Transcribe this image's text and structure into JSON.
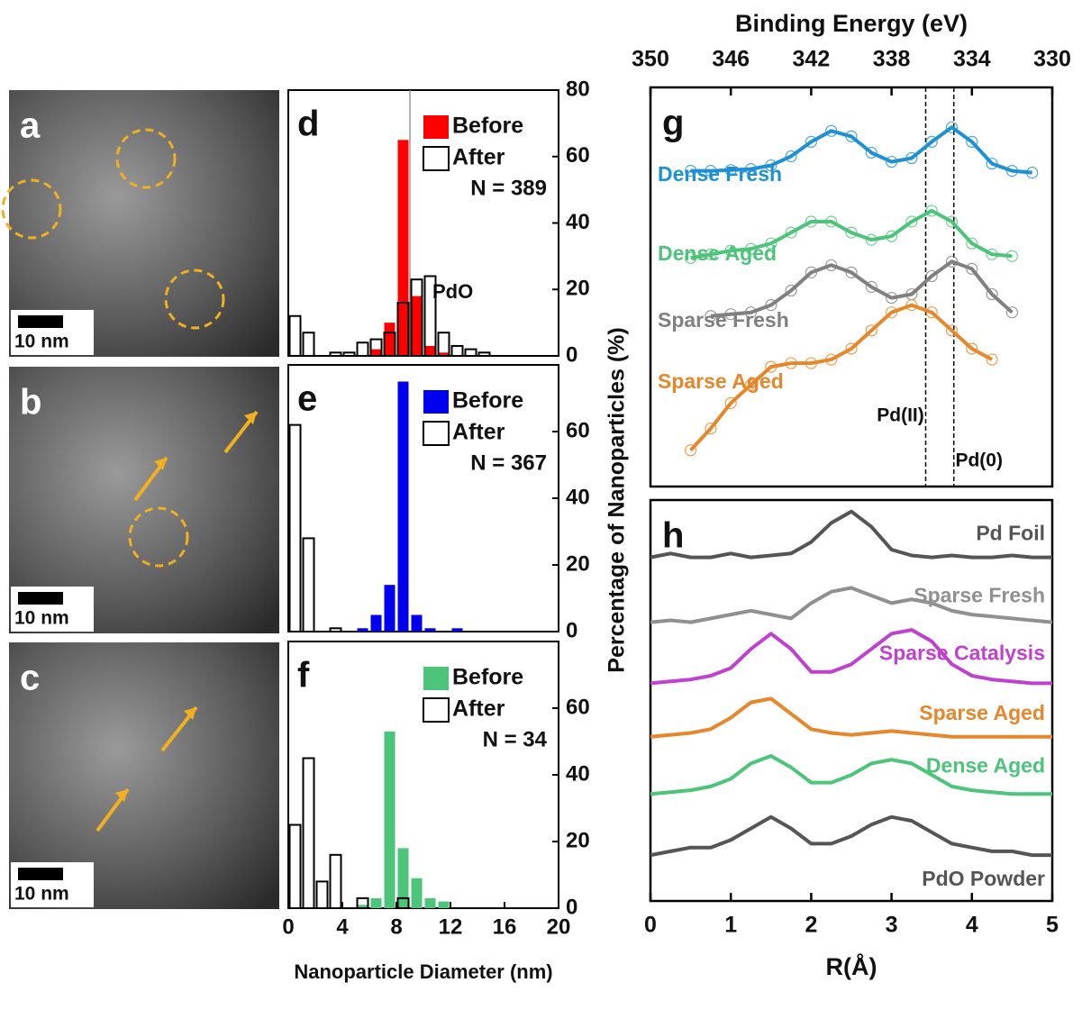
{
  "images": [
    {
      "label": "a",
      "scale_bar": "10 nm"
    },
    {
      "label": "b",
      "scale_bar": "10 nm"
    },
    {
      "label": "c",
      "scale_bar": "10 nm"
    }
  ],
  "histogram_axes": {
    "xlabel": "Nanoparticle Diameter (nm)",
    "ylabel": "Percentage of Nanoparticles (%)"
  },
  "chart_data": [
    {
      "type": "histogram",
      "panel": "d",
      "bins": [
        0,
        1,
        2,
        3,
        4,
        5,
        6,
        7,
        8,
        9,
        10,
        11,
        12,
        13,
        14,
        15,
        16,
        17,
        18,
        19,
        20
      ],
      "series": [
        {
          "name": "Before",
          "color": "#ff0000",
          "values": [
            0,
            0,
            0,
            0,
            0,
            0,
            2,
            10,
            65,
            18,
            3,
            1,
            0,
            0,
            0,
            0,
            0,
            0,
            0,
            0
          ]
        },
        {
          "name": "After",
          "color": "none",
          "edgecolor": "#000000",
          "values": [
            12,
            7,
            0,
            1,
            1,
            4,
            5,
            7,
            16,
            23,
            24,
            7,
            3,
            2,
            1,
            0,
            0,
            0,
            0,
            0
          ]
        }
      ],
      "note": "N = 389",
      "annotation": {
        "text": "PdO",
        "x": 9
      },
      "xlim": [
        0,
        20
      ],
      "ylim": [
        0,
        80
      ],
      "yticks": [
        0,
        20,
        40,
        60,
        80
      ]
    },
    {
      "type": "histogram",
      "panel": "e",
      "bins": [
        0,
        1,
        2,
        3,
        4,
        5,
        6,
        7,
        8,
        9,
        10,
        11,
        12,
        13,
        14,
        15,
        16,
        17,
        18,
        19,
        20
      ],
      "series": [
        {
          "name": "Before",
          "color": "#0000ee",
          "values": [
            0,
            0,
            0,
            0,
            0,
            1,
            5,
            14,
            75,
            5,
            1,
            0,
            1,
            0,
            0,
            0,
            0,
            0,
            0,
            0
          ]
        },
        {
          "name": "After",
          "color": "none",
          "edgecolor": "#000000",
          "values": [
            62,
            28,
            0,
            1,
            0,
            0,
            0,
            0,
            0,
            0,
            0,
            0,
            0,
            0,
            0,
            0,
            0,
            0,
            0,
            0
          ]
        }
      ],
      "note": "N = 367",
      "xlim": [
        0,
        20
      ],
      "ylim": [
        0,
        80
      ],
      "yticks": [
        0,
        20,
        40,
        60
      ]
    },
    {
      "type": "histogram",
      "panel": "f",
      "bins": [
        0,
        1,
        2,
        3,
        4,
        5,
        6,
        7,
        8,
        9,
        10,
        11,
        12,
        13,
        14,
        15,
        16,
        17,
        18,
        19,
        20
      ],
      "series": [
        {
          "name": "Before",
          "color": "#4cc47a",
          "values": [
            0,
            0,
            0,
            0,
            0,
            1,
            3,
            53,
            18,
            9,
            3,
            2,
            0,
            0,
            0,
            0,
            0,
            0,
            0,
            0
          ]
        },
        {
          "name": "After",
          "color": "none",
          "edgecolor": "#000000",
          "values": [
            25,
            45,
            8,
            16,
            0,
            3,
            0,
            0,
            3,
            0,
            0,
            0,
            0,
            0,
            0,
            0,
            0,
            0,
            0,
            0
          ]
        }
      ],
      "note": "N = 34",
      "xlim": [
        0,
        20
      ],
      "ylim": [
        0,
        80
      ],
      "yticks": [
        0,
        20,
        40,
        60
      ],
      "xticks": [
        0,
        4,
        8,
        12,
        16,
        20
      ]
    },
    {
      "type": "line",
      "panel": "g",
      "xlabel": "Binding Energy (eV)",
      "x": [
        348,
        347,
        346,
        345,
        344,
        343,
        342,
        341,
        340,
        339,
        338,
        337,
        336,
        335,
        334,
        333,
        332,
        331
      ],
      "series": [
        {
          "name": "Dense Fresh",
          "color": "#1e90d6",
          "values": [
            8.7,
            8.7,
            8.72,
            8.75,
            8.85,
            9.1,
            9.5,
            9.8,
            9.65,
            9.2,
            8.95,
            9.05,
            9.5,
            9.9,
            9.5,
            8.9,
            8.7,
            8.65
          ]
        },
        {
          "name": "Dense Aged",
          "color": "#4cc47a",
          "values": [
            6.3,
            6.4,
            6.5,
            6.55,
            6.7,
            7.0,
            7.3,
            7.3,
            7.0,
            6.8,
            6.9,
            7.3,
            7.6,
            7.3,
            6.7,
            6.4,
            6.35,
            null
          ]
        },
        {
          "name": "Sparse Fresh",
          "color": "#808080",
          "values": [
            null,
            4.7,
            4.75,
            4.8,
            5.0,
            5.4,
            5.9,
            6.1,
            5.9,
            5.5,
            5.2,
            5.3,
            5.8,
            6.2,
            6.0,
            5.3,
            4.8,
            null
          ]
        },
        {
          "name": "Sparse Aged",
          "color": "#e8862a",
          "values": [
            1.0,
            1.6,
            2.3,
            2.8,
            3.3,
            3.4,
            3.4,
            3.5,
            3.8,
            4.3,
            4.8,
            5.0,
            4.8,
            4.3,
            3.8,
            3.5,
            null,
            null
          ]
        }
      ],
      "vlines": [
        {
          "x": 336.3,
          "label": "Pd(II)"
        },
        {
          "x": 334.9,
          "label": "Pd(0)"
        }
      ],
      "xlim": [
        350,
        330
      ],
      "ylim": [
        0,
        11
      ],
      "xticks": [
        350,
        346,
        342,
        338,
        334,
        330
      ]
    },
    {
      "type": "line",
      "panel": "h",
      "xlabel": "R(Å)",
      "x": [
        0,
        0.25,
        0.5,
        0.75,
        1,
        1.25,
        1.5,
        1.75,
        2,
        2.25,
        2.5,
        2.75,
        3,
        3.25,
        3.5,
        3.75,
        4,
        4.25,
        4.5,
        4.75,
        5
      ],
      "series": [
        {
          "name": "Pd Foil",
          "color": "#555555",
          "values": [
            10,
            10.1,
            10,
            10,
            10.1,
            10,
            10.05,
            10.1,
            10.4,
            10.9,
            11.2,
            10.8,
            10.2,
            10.05,
            10,
            10.05,
            10,
            10,
            10.05,
            10,
            10
          ]
        },
        {
          "name": "Sparse Fresh",
          "color": "#909090",
          "values": [
            8.3,
            8.35,
            8.3,
            8.4,
            8.5,
            8.6,
            8.5,
            8.4,
            8.8,
            9.1,
            9.2,
            9.0,
            8.8,
            8.9,
            8.8,
            8.6,
            8.5,
            8.45,
            8.4,
            8.35,
            8.3
          ]
        },
        {
          "name": "Sparse Catalysis",
          "color": "#c040d0",
          "values": [
            6.7,
            6.75,
            6.8,
            6.9,
            7.1,
            7.6,
            8.0,
            7.6,
            7.0,
            7.0,
            7.2,
            7.6,
            8.0,
            8.1,
            7.8,
            7.2,
            6.9,
            6.8,
            6.75,
            6.7,
            6.7
          ]
        },
        {
          "name": "Sparse Aged",
          "color": "#e8862a",
          "values": [
            5.3,
            5.35,
            5.4,
            5.5,
            5.8,
            6.2,
            6.3,
            5.9,
            5.5,
            5.4,
            5.35,
            5.4,
            5.45,
            5.4,
            5.35,
            5.3,
            5.3,
            5.3,
            5.3,
            5.3,
            5.3
          ]
        },
        {
          "name": "Dense Aged",
          "color": "#4cc47a",
          "values": [
            3.8,
            3.85,
            3.9,
            4.0,
            4.2,
            4.6,
            4.8,
            4.5,
            4.1,
            4.1,
            4.3,
            4.6,
            4.7,
            4.6,
            4.3,
            4.0,
            3.9,
            3.85,
            3.8,
            3.8,
            3.8
          ]
        },
        {
          "name": "PdO Powder",
          "color": "#555555",
          "values": [
            2.2,
            2.3,
            2.4,
            2.4,
            2.6,
            2.9,
            3.2,
            2.9,
            2.5,
            2.5,
            2.7,
            3.0,
            3.2,
            3.1,
            2.8,
            2.5,
            2.4,
            2.3,
            2.3,
            2.2,
            2.2
          ]
        }
      ],
      "xlim": [
        0,
        5
      ],
      "ylim": [
        1,
        11.5
      ],
      "xticks": [
        0,
        1,
        2,
        3,
        4,
        5
      ]
    }
  ]
}
